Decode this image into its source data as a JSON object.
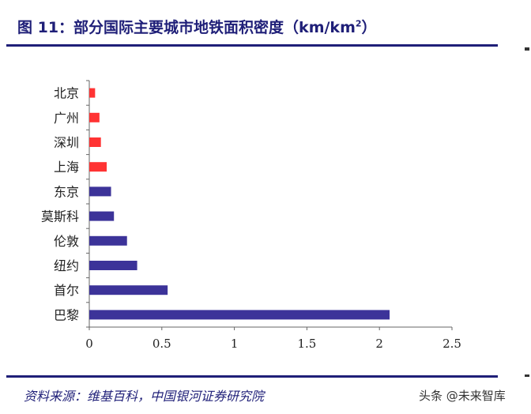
{
  "header": {
    "title": "图 11：部分国际主要城市地铁面积密度（km/km",
    "title_sup": "2",
    "title_end": "）"
  },
  "source": "资料来源：维基百科，中国银河证券研究院",
  "watermark": "头条 @未来智库",
  "chart_data": {
    "type": "bar",
    "orientation": "horizontal",
    "categories": [
      "北京",
      "广州",
      "深圳",
      "上海",
      "东京",
      "莫斯科",
      "伦敦",
      "纽约",
      "首尔",
      "巴黎"
    ],
    "values": [
      0.04,
      0.07,
      0.08,
      0.12,
      0.15,
      0.17,
      0.26,
      0.33,
      0.54,
      2.07
    ],
    "bar_colors": [
      "#ff3333",
      "#ff3333",
      "#ff3333",
      "#ff3333",
      "#3c3399",
      "#3c3399",
      "#3c3399",
      "#3c3399",
      "#3c3399",
      "#3c3399"
    ],
    "xlim": [
      0,
      2.5
    ],
    "xticks": [
      0,
      0.5,
      1,
      1.5,
      2,
      2.5
    ],
    "xtick_labels": [
      "0",
      "0.5",
      "1",
      "1.5",
      "2",
      "2.5"
    ],
    "title": "",
    "xlabel": "",
    "ylabel": "",
    "grid": false,
    "legend": "none"
  }
}
